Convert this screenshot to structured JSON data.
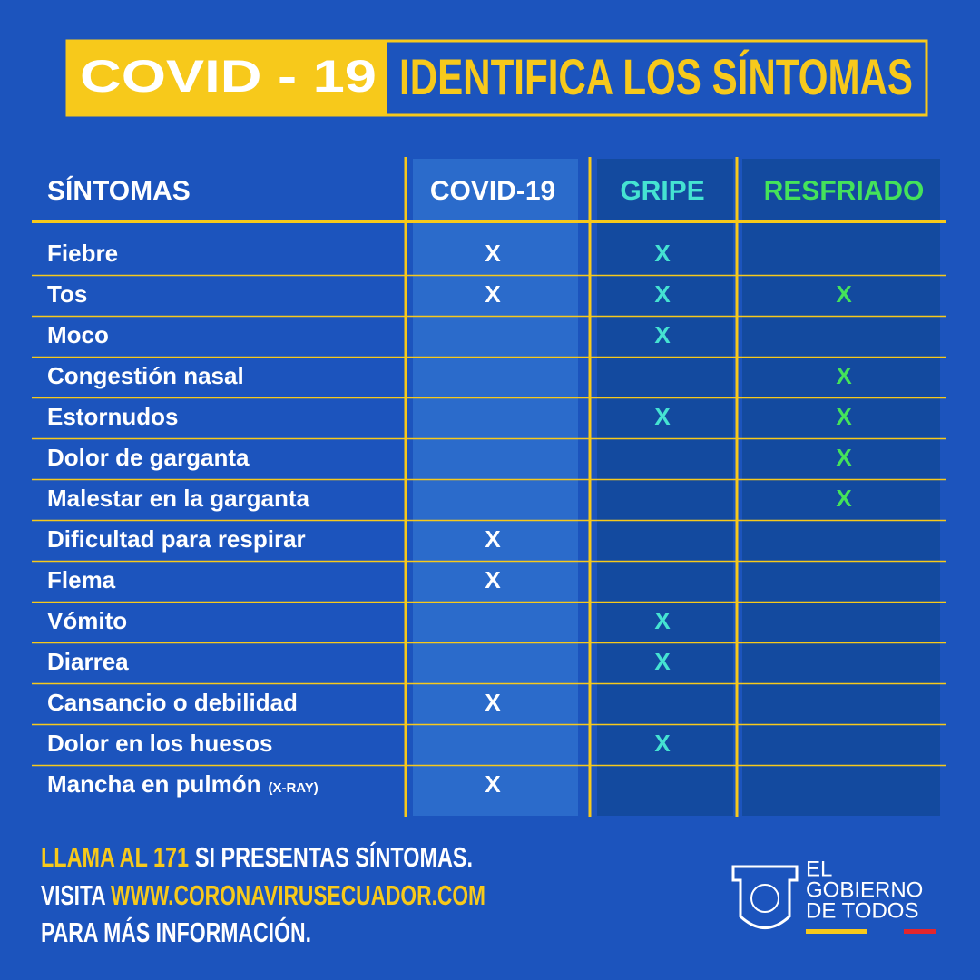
{
  "header": {
    "badge": "COVID - 19",
    "title": "IDENTIFICA LOS SÍNTOMAS"
  },
  "table": {
    "columns": [
      "SÍNTOMAS",
      "COVID-19",
      "GRIPE",
      "RESFRIADO"
    ],
    "rows": [
      [
        "Fiebre",
        "X",
        "X",
        null
      ],
      [
        "Tos",
        "X",
        "X",
        "X"
      ],
      [
        "Moco",
        null,
        "X",
        null
      ],
      [
        "Congestión nasal",
        null,
        null,
        "X"
      ],
      [
        "Estornudos",
        null,
        "X",
        "X"
      ],
      [
        "Dolor de garganta",
        null,
        null,
        "X"
      ],
      [
        "Malestar en la garganta",
        null,
        null,
        "X"
      ],
      [
        "Dificultad para respirar",
        "X",
        null,
        null
      ],
      [
        "Flema",
        "X",
        null,
        null
      ],
      [
        "Vómito",
        null,
        "X",
        null
      ],
      [
        "Diarrea",
        null,
        "X",
        null
      ],
      [
        "Cansancio o debilidad",
        "X",
        null,
        null
      ],
      [
        "Dolor en los huesos",
        null,
        "X",
        null
      ],
      [
        "Mancha en pulmón",
        "X",
        null,
        null
      ]
    ],
    "last_row_note": "(X-RAY)"
  },
  "footer": {
    "line1": [
      "LLAMA AL 171",
      "SI PRESENTAS SÍNTOMAS."
    ],
    "line2": [
      "VISITA",
      "WWW.CORONAVIRUSECUADOR.COM"
    ],
    "line3": "PARA MÁS INFORMACIÓN."
  },
  "logo": [
    "EL",
    "GOBIERNO",
    "DE TODOS"
  ]
}
